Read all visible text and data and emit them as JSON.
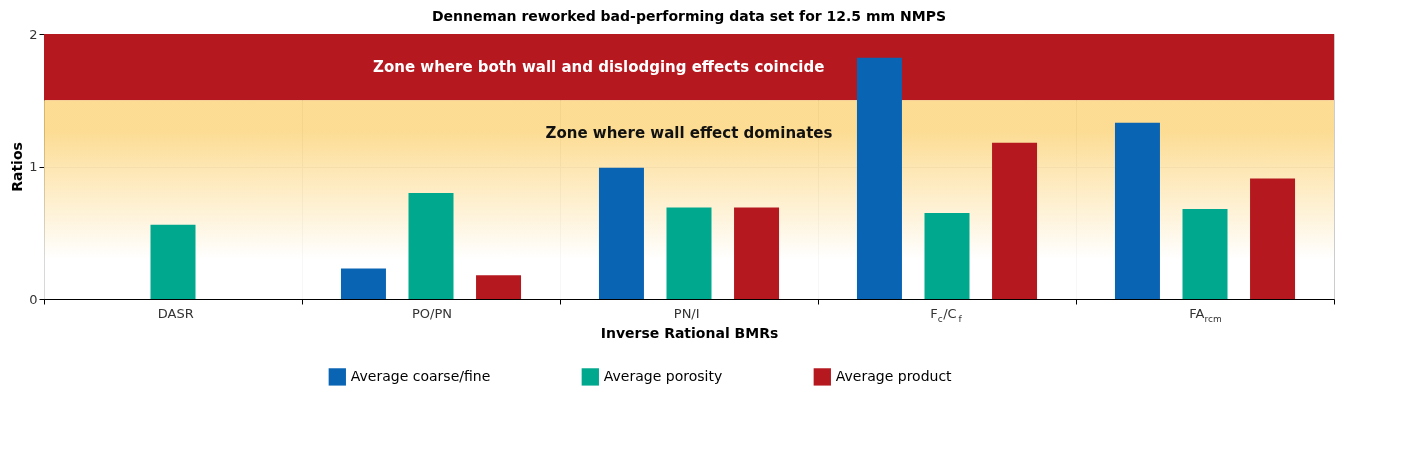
{
  "chart_data": {
    "type": "bar",
    "title": "Denneman reworked bad-performing data set for 12.5 mm NMPS",
    "xlabel": "Inverse Rational BMRs",
    "ylabel": "Ratios",
    "categories": [
      "DASR",
      "PO/PN",
      "PN/I",
      "F$_{c}$/C$_{f}$",
      "FA$_{rcm}$"
    ],
    "series": [
      {
        "name": "Average coarse/fine",
        "color": "#0a64b4",
        "values": [
          null,
          0.23,
          0.99,
          1.82,
          1.33
        ]
      },
      {
        "name": "Average porosity",
        "color": "#00a88e",
        "values": [
          0.56,
          0.8,
          0.69,
          0.65,
          0.68
        ]
      },
      {
        "name": "Average product",
        "color": "#b5191f",
        "values": [
          null,
          0.18,
          0.69,
          1.18,
          0.91
        ]
      }
    ],
    "ylim": [
      0,
      2
    ],
    "yticks": [
      0,
      1,
      2
    ],
    "grid": true,
    "legend": "bottom",
    "bands": [
      {
        "axis": "y",
        "from": 1.5,
        "to": 2,
        "label": "Zone where both wall and dislodging  effects coincide",
        "color": "#b5191f"
      },
      {
        "axis": "y",
        "from": 0,
        "to": 1.5,
        "label": "Zone where wall effect dominates",
        "color": "#fcd680"
      }
    ]
  }
}
